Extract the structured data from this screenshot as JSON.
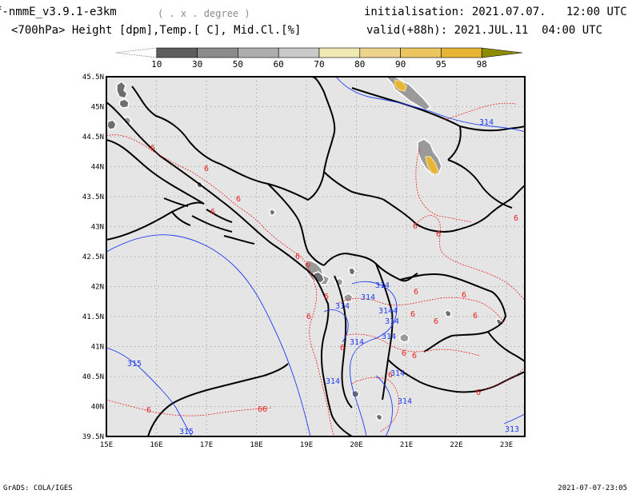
{
  "header": {
    "title": "f-nmmE_v3.9.1-e3km",
    "units_note": "( . x . degree )",
    "subtitle": "<700hPa> Height [dpm],Temp.[ C], Mid.Cl.[%]",
    "init_label": "initialisation:",
    "init_value": "2021.07.07.   12:00 UTC",
    "valid_label": "valid(+88h):",
    "valid_value": "2021.JUL.11  04:00 UTC"
  },
  "colorbar": {
    "labels": [
      "10",
      "30",
      "50",
      "60",
      "70",
      "80",
      "90",
      "95",
      "98"
    ],
    "colors": [
      "#ffffff",
      "#5e5e5e",
      "#8c8c8c",
      "#adadad",
      "#c9c9c9",
      "#efe9b4",
      "#eed38d",
      "#ebc65e",
      "#e6b534",
      "#8c8c00"
    ]
  },
  "map": {
    "lon_labels": [
      "15E",
      "16E",
      "17E",
      "18E",
      "19E",
      "20E",
      "21E",
      "22E",
      "23E"
    ],
    "lat_labels": [
      "45.5N",
      "45N",
      "44.5N",
      "44N",
      "43.5N",
      "43N",
      "42.5N",
      "42N",
      "41.5N",
      "41N",
      "40.5N",
      "40N",
      "39.5N"
    ],
    "height_contour_labels": [
      "314",
      "314",
      "314",
      "314",
      "3144",
      "314",
      "314",
      "314",
      "315",
      "314",
      "314",
      "314",
      "315",
      "313"
    ],
    "temp_contour_labels": [
      "6",
      "6",
      "6",
      "6",
      "6",
      "6",
      "6",
      "6",
      "6",
      "6",
      "6",
      "6",
      "6",
      "6",
      "6",
      "6",
      "6",
      "6",
      "66",
      "6",
      "6",
      "6",
      "6"
    ],
    "colors": {
      "land_bg": "#e5e5e5",
      "border": "#000000",
      "height_contour": "#1f3cf0",
      "temp_contour": "#e8201c",
      "cloud_dark": "#6e6e6e",
      "cloud_mid": "#9a9a9a",
      "cloud_yellow": "#e6b534",
      "grid": "#7a7a7a"
    }
  },
  "footer": {
    "left": "GrADS: COLA/IGES",
    "right": "2021-07-07-23:05"
  }
}
